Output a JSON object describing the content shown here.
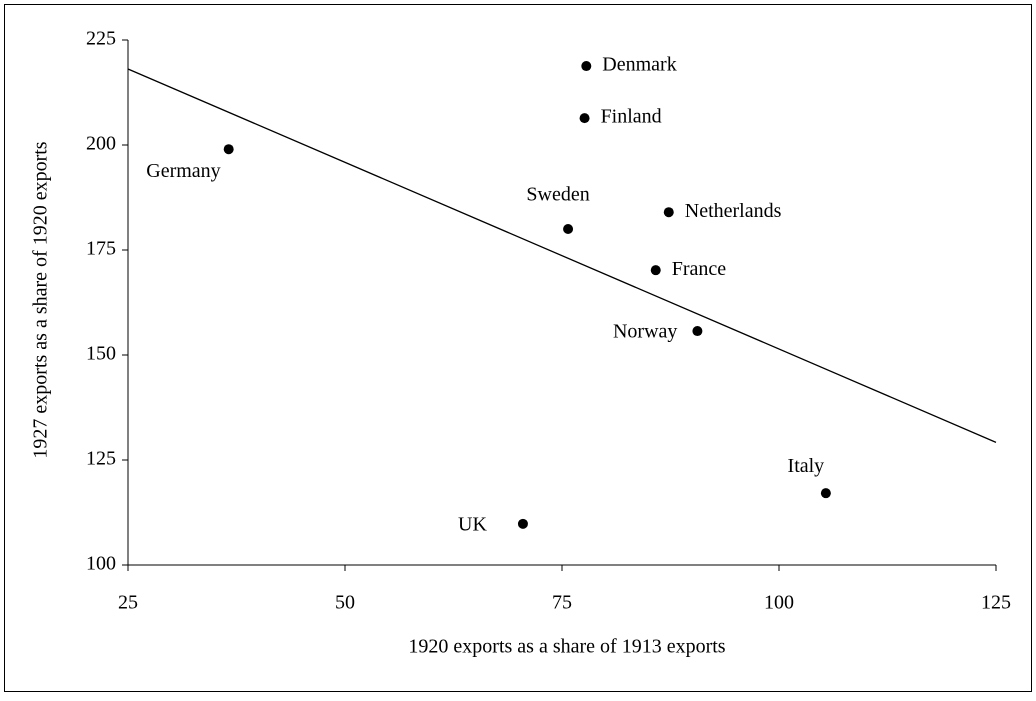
{
  "chart_data": {
    "type": "scatter",
    "x_label": "1920 exports as a share of 1913 exports",
    "y_label": "1927 exports as a share of 1920 exports",
    "series": [
      {
        "labels": [
          "Germany",
          "Denmark",
          "Finland",
          "Sweden",
          "Netherlands",
          "France",
          "Norway",
          "UK",
          "Italy"
        ],
        "x": [
          36.6,
          77.8,
          77.6,
          75.7,
          87.3,
          85.8,
          90.6,
          70.5,
          105.4
        ],
        "values": [
          199,
          218.8,
          206.4,
          180,
          184,
          170.2,
          155.7,
          109.8,
          117.1
        ],
        "color": "#000000"
      }
    ],
    "trendline": {
      "x": [
        25,
        125
      ],
      "values": [
        218.1,
        129.2
      ],
      "color": "#000000"
    },
    "xlim": [
      25,
      125
    ],
    "xticks": [
      25,
      50,
      75,
      100,
      125
    ],
    "ylim": [
      100,
      225
    ],
    "yticks": [
      100,
      125,
      150,
      175,
      200,
      225
    ],
    "grid": false
  }
}
